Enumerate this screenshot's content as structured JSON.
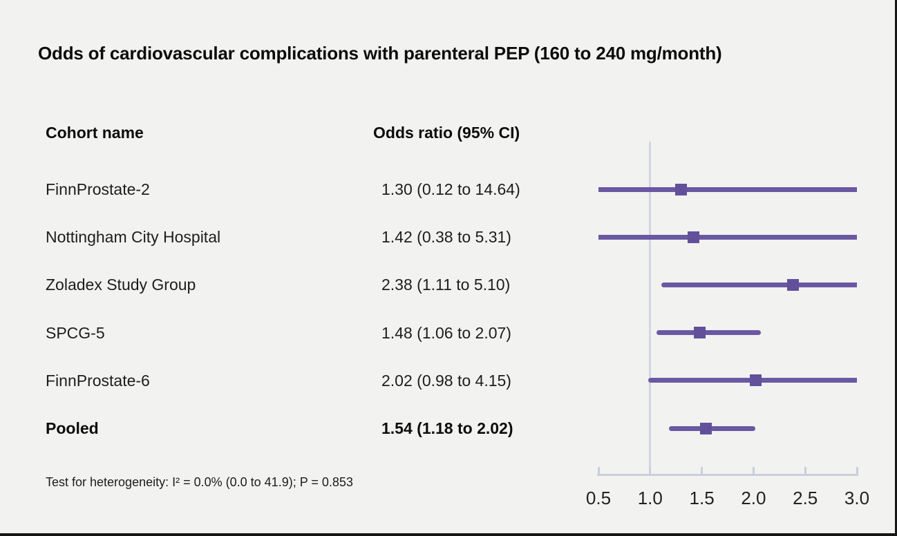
{
  "title": "Odds of cardiovascular complications with parenteral PEP (160 to 240 mg/month)",
  "table": {
    "cohort_header": "Cohort name",
    "or_header": "Odds ratio (95% CI)"
  },
  "footnote": "Test for heterogeneity: I² = 0.0% (0.0 to 41.9); P = 0.853",
  "colors": {
    "background": "#f2f2f1",
    "ci_line": "#6a58a3",
    "marker_square": "#62509a",
    "axis": "#c9cedb",
    "reference_line": "#d2d6e0",
    "text": "#1d1d1d"
  },
  "chart_data": {
    "type": "scatter",
    "subtype": "forest-plot",
    "title": "Odds of cardiovascular complications with parenteral PEP (160 to 240 mg/month)",
    "xlabel": "",
    "ylabel": "",
    "axis": {
      "min": 0.5,
      "max": 3.0,
      "scale": "linear",
      "tick_labels": [
        "0.5",
        "1.0",
        "1.5",
        "2.0",
        "2.5",
        "3.0"
      ],
      "reference_line": 1.0,
      "grid": false
    },
    "rows": [
      {
        "label": "FinnProstate-2",
        "or": 1.3,
        "ci_low": 0.12,
        "ci_high": 14.64,
        "or_label": "1.30 (0.12 to 14.64)",
        "pooled": false
      },
      {
        "label": "Nottingham City Hospital",
        "or": 1.42,
        "ci_low": 0.38,
        "ci_high": 5.31,
        "or_label": "1.42 (0.38 to 5.31)",
        "pooled": false
      },
      {
        "label": "Zoladex Study Group",
        "or": 2.38,
        "ci_low": 1.11,
        "ci_high": 5.1,
        "or_label": "2.38 (1.11 to 5.10)",
        "pooled": false
      },
      {
        "label": "SPCG-5",
        "or": 1.48,
        "ci_low": 1.06,
        "ci_high": 2.07,
        "or_label": "1.48 (1.06 to 2.07)",
        "pooled": false
      },
      {
        "label": "FinnProstate-6",
        "or": 2.02,
        "ci_low": 0.98,
        "ci_high": 4.15,
        "or_label": "2.02 (0.98 to 4.15)",
        "pooled": false
      },
      {
        "label": "Pooled",
        "or": 1.54,
        "ci_low": 1.18,
        "ci_high": 2.02,
        "or_label": "1.54 (1.18 to 2.02)",
        "pooled": true
      }
    ],
    "footnote": "Test for heterogeneity: I² = 0.0% (0.0 to 41.9); P = 0.853"
  }
}
